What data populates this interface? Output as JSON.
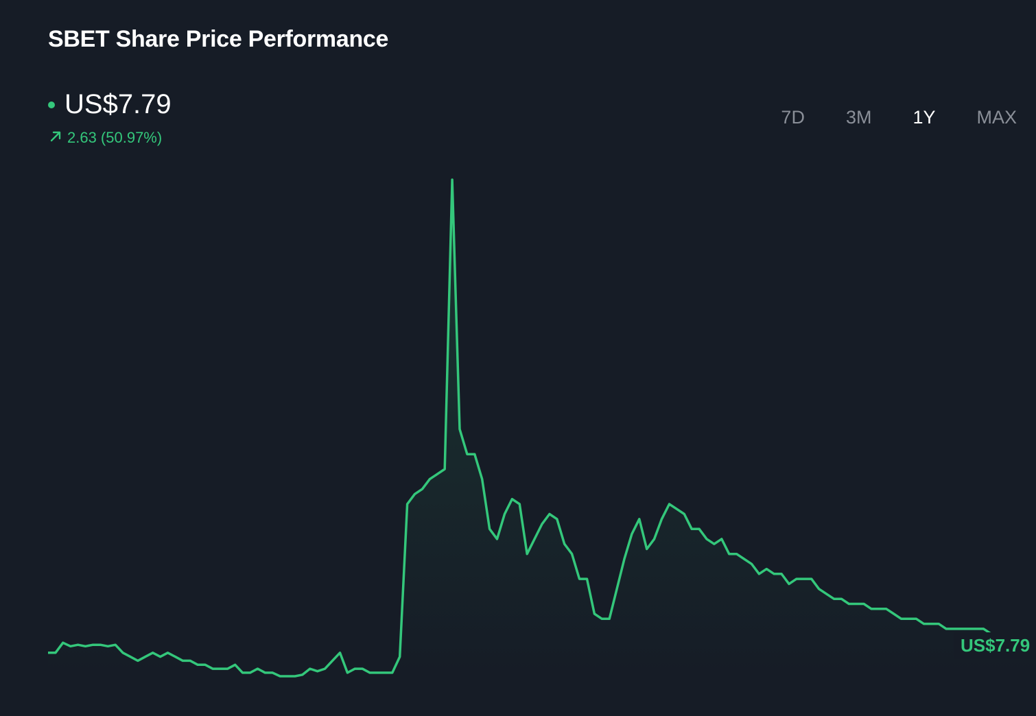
{
  "header": {
    "title": "SBET Share Price Performance",
    "price": "US$7.79",
    "change": "2.63 (50.97%)",
    "change_icon": "arrow-up-right-icon"
  },
  "range_tabs": [
    {
      "label": "7D",
      "active": false
    },
    {
      "label": "3M",
      "active": false
    },
    {
      "label": "1Y",
      "active": true
    },
    {
      "label": "MAX",
      "active": false
    }
  ],
  "colors": {
    "accent": "#34c77b",
    "background": "#161c26",
    "inactive_tab": "#8a8f98"
  },
  "chart_data": {
    "type": "area",
    "title": "SBET Share Price Performance",
    "xlabel": "",
    "ylabel": "",
    "grid": false,
    "ylim": [
      2,
      116
    ],
    "end_label": "US$7.79",
    "series": [
      {
        "values": [
          5.2,
          5.2,
          7.2,
          6.5,
          6.8,
          6.5,
          6.8,
          6.8,
          6.5,
          6.8,
          5.2,
          4.4,
          3.6,
          4.4,
          5.2,
          4.4,
          5.2,
          4.4,
          3.6,
          3.6,
          2.8,
          2.8,
          2.0,
          2.0,
          2.0,
          2.8,
          1.2,
          1.2,
          2.0,
          1.2,
          1.2,
          0.5,
          0.5,
          0.5,
          0.8,
          2.0,
          1.5,
          2.0,
          3.6,
          5.2,
          1.2,
          2.0,
          2.0,
          1.2,
          1.2,
          1.2,
          1.2,
          4.4,
          35.0,
          37.0,
          38.0,
          40.0,
          41.0,
          42.0,
          100.0,
          50.0,
          45.0,
          45.0,
          40.0,
          30.0,
          28.0,
          33.0,
          36.0,
          35.0,
          25.0,
          28.0,
          31.0,
          33.0,
          32.0,
          27.0,
          25.0,
          20.0,
          20.0,
          13.0,
          12.0,
          12.0,
          18.0,
          24.0,
          29.0,
          32.0,
          26.0,
          28.0,
          32.0,
          35.0,
          34.0,
          33.0,
          30.0,
          30.0,
          28.0,
          27.0,
          28.0,
          25.0,
          25.0,
          24.0,
          23.0,
          21.0,
          22.0,
          21.0,
          21.0,
          19.0,
          20.0,
          20.0,
          20.0,
          18.0,
          17.0,
          16.0,
          16.0,
          15.0,
          15.0,
          15.0,
          14.0,
          14.0,
          14.0,
          13.0,
          12.0,
          12.0,
          12.0,
          11.0,
          11.0,
          11.0,
          10.0,
          10.0,
          10.0,
          10.0,
          10.0,
          10.0,
          9.0,
          9.0,
          9.0,
          8.0,
          8.0,
          8.0,
          7.79
        ]
      }
    ]
  }
}
